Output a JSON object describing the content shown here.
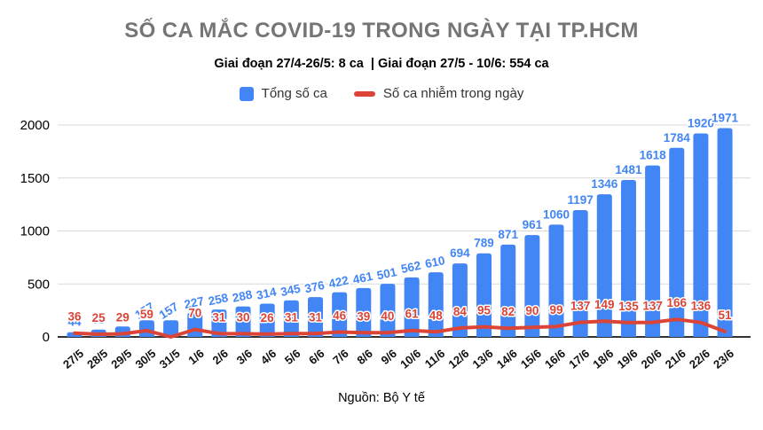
{
  "colors": {
    "bar_blue": "#4285F4",
    "line_red": "#DB4437",
    "title_gray": "#757575",
    "gridline": "#D9D9D9",
    "axis_line": "#333333",
    "text_black": "#000000"
  },
  "chart_data": {
    "type": "bar",
    "combo": "bar series (cumulative) + line series (daily) on shared axis",
    "title": "SỐ CA MẮC COVID-19 TRONG NGÀY TẠI TP.HCM",
    "subtitle": "Giai đoạn 27/4-26/5: 8 ca  | Giai đoạn 27/5 - 10/6: 554 ca",
    "source_note": "Nguồn: Bộ Y tế",
    "categories": [
      "27/5",
      "28/5",
      "29/5",
      "30/5",
      "31/5",
      "1/6",
      "2/6",
      "3/6",
      "4/6",
      "5/6",
      "6/6",
      "7/6",
      "8/6",
      "9/6",
      "10/6",
      "11/6",
      "12/6",
      "13/6",
      "14/6",
      "15/6",
      "16/6",
      "17/6",
      "18/6",
      "19/6",
      "20/6",
      "21/6",
      "22/6",
      "23/6"
    ],
    "series": [
      {
        "name": "Tổng số ca",
        "type": "bar",
        "color": "#4285F4",
        "values": [
          44,
          69,
          98,
          157,
          157,
          227,
          258,
          288,
          314,
          345,
          376,
          422,
          461,
          501,
          562,
          610,
          694,
          789,
          871,
          961,
          1060,
          1197,
          1346,
          1481,
          1618,
          1784,
          1920,
          1971
        ],
        "point_labels": [
          "44",
          "69",
          "98",
          "157",
          "157",
          "227",
          "258",
          "288",
          "314",
          "345",
          "376",
          "422",
          "461",
          "501",
          "562",
          "610",
          "694",
          "789",
          "871",
          "961",
          "1060",
          "1197",
          "1346",
          "1481",
          "1618",
          "1784",
          "1920",
          "1971"
        ]
      },
      {
        "name": "Số ca nhiễm trong ngày",
        "type": "line",
        "color": "#DB4437",
        "values": [
          36,
          25,
          29,
          59,
          0,
          70,
          31,
          30,
          26,
          31,
          31,
          46,
          39,
          40,
          61,
          48,
          84,
          95,
          82,
          90,
          99,
          137,
          149,
          135,
          137,
          166,
          136,
          51
        ],
        "point_labels": [
          "36",
          "25",
          "29",
          "59",
          "",
          "70",
          "31",
          "30",
          "26",
          "31",
          "31",
          "46",
          "39",
          "40",
          "61",
          "48",
          "84",
          "95",
          "82",
          "90",
          "99",
          "137",
          "149",
          "135",
          "137",
          "166",
          "136",
          "51"
        ]
      }
    ],
    "ylim": [
      0,
      2000
    ],
    "yticks": [
      0,
      500,
      1000,
      1500,
      2000
    ],
    "grid": "horizontal",
    "legend_position": "top",
    "x_tick_rotation": -40,
    "xlabel": "",
    "ylabel": ""
  }
}
